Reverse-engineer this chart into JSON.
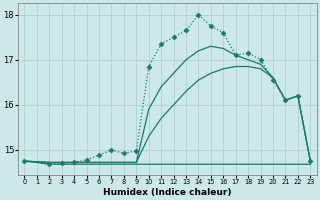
{
  "xlabel": "Humidex (Indice chaleur)",
  "background_color": "#cce8e8",
  "grid_color": "#aacccc",
  "line_color": "#1a7a6a",
  "xlim": [
    -0.5,
    23.5
  ],
  "ylim": [
    14.45,
    18.25
  ],
  "yticks": [
    15,
    16,
    17,
    18
  ],
  "xtick_labels": [
    "0",
    "1",
    "2",
    "3",
    "4",
    "5",
    "6",
    "7",
    "8",
    "9",
    "10",
    "11",
    "12",
    "13",
    "14",
    "15",
    "16",
    "17",
    "18",
    "19",
    "20",
    "21",
    "22",
    "23"
  ],
  "xticks": [
    0,
    1,
    2,
    3,
    4,
    5,
    6,
    7,
    8,
    9,
    10,
    11,
    12,
    13,
    14,
    15,
    16,
    17,
    18,
    19,
    20,
    21,
    22,
    23
  ],
  "series": [
    {
      "x": [
        0,
        1,
        2,
        3,
        4,
        5,
        6,
        7,
        8,
        9,
        10,
        11,
        12,
        13,
        14,
        15,
        16,
        17,
        18,
        19,
        20,
        21,
        22,
        23
      ],
      "y": [
        14.75,
        14.72,
        14.68,
        14.68,
        14.68,
        14.68,
        14.68,
        14.68,
        14.68,
        14.68,
        14.68,
        14.68,
        14.68,
        14.68,
        14.68,
        14.68,
        14.68,
        14.68,
        14.68,
        14.68,
        14.68,
        14.68,
        14.68,
        14.68
      ],
      "marker": null,
      "linestyle": "-",
      "linewidth": 0.9
    },
    {
      "x": [
        0,
        2,
        3,
        4,
        5,
        6,
        7,
        8,
        9,
        10,
        11,
        12,
        13,
        14,
        15,
        16,
        17,
        18,
        19,
        20,
        21,
        22,
        23
      ],
      "y": [
        14.75,
        14.72,
        14.72,
        14.72,
        14.72,
        14.72,
        14.72,
        14.72,
        14.72,
        15.3,
        15.7,
        16.0,
        16.3,
        16.55,
        16.7,
        16.8,
        16.85,
        16.85,
        16.8,
        16.6,
        16.1,
        16.2,
        14.75
      ],
      "marker": null,
      "linestyle": "-",
      "linewidth": 0.9
    },
    {
      "x": [
        0,
        2,
        3,
        4,
        5,
        6,
        7,
        8,
        9,
        10,
        11,
        12,
        13,
        14,
        15,
        16,
        17,
        18,
        19,
        20,
        21,
        22,
        23
      ],
      "y": [
        14.75,
        14.72,
        14.72,
        14.72,
        14.72,
        14.72,
        14.72,
        14.72,
        14.72,
        15.9,
        16.4,
        16.7,
        17.0,
        17.2,
        17.3,
        17.25,
        17.1,
        17.0,
        16.9,
        16.6,
        16.1,
        16.2,
        14.75
      ],
      "marker": null,
      "linestyle": "-",
      "linewidth": 0.9
    },
    {
      "x": [
        0,
        2,
        3,
        4,
        5,
        6,
        7,
        8,
        9,
        10,
        11,
        12,
        13,
        14,
        15,
        16,
        17,
        18,
        19,
        20,
        21,
        22,
        23
      ],
      "y": [
        14.75,
        14.68,
        14.7,
        14.72,
        14.78,
        14.88,
        15.0,
        14.92,
        14.98,
        16.85,
        17.35,
        17.5,
        17.65,
        18.0,
        17.75,
        17.6,
        17.1,
        17.15,
        17.0,
        16.55,
        16.1,
        16.2,
        14.75
      ],
      "marker": "D",
      "linestyle": ":",
      "linewidth": 0.9
    }
  ]
}
